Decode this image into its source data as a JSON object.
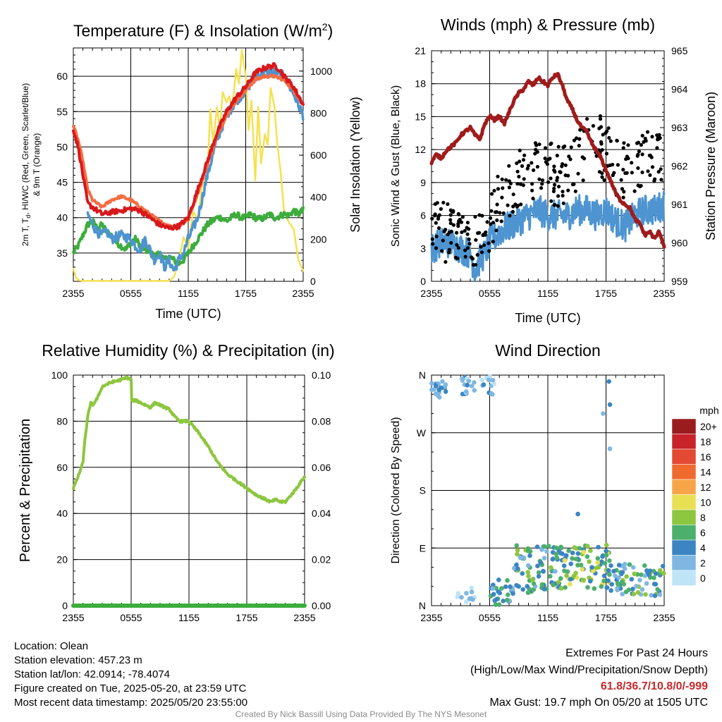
{
  "panels": {
    "temperature": {
      "title": "Temperature (F) & Insolation (W/m",
      "title_sup": "2",
      "title_end": ")",
      "ylabel_left": [
        "2m T, T",
        "d",
        ", HI/WC (Red, Green, Scarlet/Blue)",
        "& 9m T (Orange)"
      ],
      "ylabel_right": "Solar Insolation (Yellow)",
      "xlabel": "Time (UTC)"
    },
    "winds": {
      "title": "Winds (mph) & Pressure (mb)",
      "ylabel_left": "Sonic Wind & Gust (Blue, Black)",
      "ylabel_right": "Station Pressure (Maroon)",
      "xlabel": "Time (UTC)"
    },
    "humidity": {
      "title": "Relative Humidity (%) & Precipitation (in)",
      "ylabel_left": "Percent & Precipitation"
    },
    "direction": {
      "title": "Wind Direction",
      "ylabel_left": "Direction (Colored By Speed)",
      "colorbar_title": "mph"
    }
  },
  "info": {
    "location": "Location: Olean",
    "elevation": "Station elevation: 457.23 m",
    "latlon": "Station lat/lon: 42.0914; -78.4074",
    "created": "Figure created on Tue, 2025-05-20, at 23:59 UTC",
    "recent": "Most recent data timestamp: 2025/05/20 23:55:00"
  },
  "extremes": {
    "title": "Extremes For Past 24 Hours",
    "subtitle": "(High/Low/Max Wind/Precipitation/Snow Depth)",
    "values": "61.8/36.7/10.8/0/-999",
    "max_gust": "Max Gust: 19.7 mph On 05/20 at 1505 UTC"
  },
  "footer": "Created By Nick Bassill Using Data Provided By The NYS Mesonet",
  "chart_data": [
    {
      "id": "temperature",
      "type": "line",
      "x_ticks": [
        "2355",
        "0555",
        "1155",
        "1755",
        "2355"
      ],
      "x_hours": [
        0,
        6,
        12,
        18,
        24
      ],
      "y_left_ticks": [
        35,
        40,
        45,
        50,
        55,
        60
      ],
      "y_left_lim": [
        31,
        64
      ],
      "y_right_ticks": [
        0,
        200,
        400,
        600,
        800,
        1000
      ],
      "y_right_lim": [
        0,
        1110
      ],
      "series": [
        {
          "color": "#d7191c",
          "width": 4,
          "axis": "left",
          "x": [
            0,
            0.5,
            1,
            1.5,
            2,
            2.5,
            3,
            4,
            5,
            6,
            7,
            8,
            9,
            10,
            11,
            12,
            13,
            14,
            15,
            16,
            17,
            18,
            19,
            20,
            21,
            21.5,
            22,
            23,
            24
          ],
          "y": [
            52.5,
            50,
            46,
            42,
            41.5,
            41,
            40.5,
            40.8,
            41,
            41.3,
            41,
            40,
            39,
            38.5,
            38.8,
            40,
            44,
            48,
            52,
            55,
            57,
            58.5,
            60.5,
            61.2,
            61.5,
            61,
            60,
            58.5,
            56
          ]
        },
        {
          "color": "#f46d43",
          "width": 4,
          "axis": "left",
          "x": [
            0,
            0.5,
            1,
            1.5,
            2,
            2.5,
            3,
            4,
            5,
            6,
            7,
            8,
            9,
            10,
            11,
            12,
            13,
            14,
            15,
            16,
            17,
            18,
            19,
            20,
            21,
            22,
            23,
            24
          ],
          "y": [
            53,
            51,
            48,
            44,
            42.5,
            42,
            41.5,
            42.5,
            43,
            42.5,
            41.5,
            40.5,
            39.5,
            38.8,
            38.8,
            39.8,
            43.5,
            47.5,
            51.5,
            54.5,
            56.5,
            58,
            59.5,
            60,
            60,
            59.5,
            58,
            56
          ]
        },
        {
          "color": "#4d94d0",
          "width": 3.5,
          "axis": "left",
          "x": [
            1.5,
            2,
            2.5,
            3,
            3.5,
            4,
            5,
            6,
            6.5,
            7,
            7.5,
            8,
            8.5,
            9,
            9.5,
            10,
            10.5,
            11,
            11.5,
            12,
            13,
            14,
            15,
            16,
            17,
            18,
            19,
            20,
            21,
            22,
            23,
            24
          ],
          "y": [
            40.5,
            39,
            38,
            37.5,
            38,
            37,
            37.5,
            37,
            36,
            35.5,
            37,
            35.5,
            34,
            35,
            33,
            34,
            32.5,
            34,
            35,
            37,
            40,
            46,
            51,
            54.5,
            56.5,
            58,
            60,
            60.5,
            60.5,
            60,
            57.5,
            54.5
          ]
        },
        {
          "color": "#3cad3c",
          "width": 4,
          "axis": "left",
          "x": [
            0,
            0.5,
            1,
            1.5,
            2,
            2.5,
            3,
            3.5,
            4,
            4.5,
            5,
            5.5,
            6,
            6.5,
            7,
            7.5,
            8,
            8.5,
            9,
            9.5,
            10,
            10.5,
            11,
            11.5,
            12,
            12.5,
            13,
            13.5,
            14,
            14.5,
            15,
            15.5,
            16,
            16.5,
            17,
            17.5,
            18,
            18.5,
            19,
            19.5,
            20,
            20.5,
            21,
            21.5,
            22,
            22.5,
            23,
            23.5,
            24
          ],
          "y": [
            35,
            36,
            37.5,
            39,
            39.5,
            38.5,
            39,
            38,
            37.5,
            36.5,
            36,
            35.5,
            36.5,
            37,
            36,
            35.5,
            35,
            34.5,
            35,
            34,
            34.5,
            34,
            33.5,
            34,
            35,
            36,
            37,
            38,
            39,
            39.5,
            40,
            40,
            39.5,
            40,
            40.5,
            40,
            40,
            40.5,
            40,
            39.8,
            40,
            40.5,
            40,
            40.2,
            40.5,
            40.3,
            41,
            40.5,
            41
          ]
        },
        {
          "color": "#f5e151",
          "width": 2.5,
          "axis": "right",
          "x": [
            0,
            0.3,
            0.6,
            1,
            2,
            4,
            6,
            8,
            10,
            10.5,
            11,
            11.5,
            12,
            12.5,
            13,
            13.5,
            14,
            14.3,
            14.6,
            15,
            15.3,
            15.6,
            16,
            16.3,
            16.6,
            17,
            17.3,
            17.6,
            18,
            18.3,
            18.6,
            19,
            19.3,
            19.6,
            20,
            20.3,
            20.6,
            21,
            21.3,
            21.6,
            22,
            22.5,
            23,
            23.5,
            24
          ],
          "y": [
            60,
            15,
            5,
            2,
            2,
            2,
            2,
            2,
            2,
            20,
            90,
            210,
            160,
            330,
            300,
            470,
            510,
            820,
            660,
            830,
            720,
            900,
            850,
            880,
            820,
            1010,
            940,
            1100,
            980,
            720,
            860,
            480,
            830,
            560,
            700,
            650,
            920,
            830,
            650,
            540,
            340,
            280,
            250,
            100,
            50
          ]
        }
      ]
    },
    {
      "id": "winds",
      "type": "line",
      "x_ticks": [
        "2355",
        "0555",
        "1155",
        "1755",
        "2355"
      ],
      "x_hours": [
        0,
        6,
        12,
        18,
        24
      ],
      "y_left_ticks": [
        0,
        3,
        6,
        9,
        12,
        15,
        18,
        21
      ],
      "y_left_lim": [
        0,
        21
      ],
      "y_right_ticks": [
        959,
        960,
        961,
        962,
        963,
        964,
        965
      ],
      "y_right_lim": [
        959,
        965
      ],
      "series": [
        {
          "name": "pressure",
          "color": "#a01b1b",
          "width": 5,
          "axis": "right",
          "x": [
            0,
            0.5,
            1,
            1.5,
            2,
            2.5,
            3,
            3.5,
            4,
            4.5,
            5,
            5.5,
            6,
            6.5,
            7,
            7.5,
            8,
            8.5,
            9,
            9.5,
            10,
            10.5,
            11,
            11.5,
            12,
            12.5,
            13,
            13.5,
            14,
            14.5,
            15,
            15.5,
            16,
            16.5,
            17,
            17.5,
            18,
            18.5,
            19,
            19.5,
            20,
            20.5,
            21,
            21.5,
            22,
            22.5,
            23,
            23.5,
            24
          ],
          "y": [
            962.1,
            962.3,
            962.2,
            962.4,
            962.5,
            962.6,
            962.8,
            962.9,
            963.0,
            962.8,
            962.7,
            963.1,
            963.3,
            963.2,
            963.3,
            963.1,
            963.4,
            963.7,
            963.9,
            964.0,
            964.2,
            964.1,
            964.3,
            964.2,
            964.1,
            964.3,
            964.4,
            964.1,
            963.7,
            963.5,
            963.2,
            963.0,
            962.9,
            962.6,
            962.4,
            962.2,
            961.9,
            961.6,
            961.3,
            961.1,
            961.0,
            960.9,
            960.6,
            960.5,
            960.2,
            960.3,
            960.1,
            960.3,
            959.9
          ]
        },
        {
          "name": "wind",
          "color": "#4d94d0",
          "width": 3,
          "axis": "left",
          "noise": 1.4,
          "x": [
            0,
            1,
            2,
            3,
            4,
            4.5,
            5,
            5.5,
            6,
            7,
            8,
            9,
            10,
            11,
            12,
            13,
            14,
            15,
            16,
            17,
            18,
            19,
            20,
            21,
            22,
            23,
            24
          ],
          "y": [
            3,
            3.5,
            3.5,
            3,
            2.5,
            1,
            2,
            2.5,
            3.5,
            4.5,
            5,
            5.5,
            6,
            6.5,
            6,
            6,
            6,
            6.5,
            6.5,
            6,
            6.5,
            5.5,
            5,
            6,
            6.5,
            6.5,
            7
          ]
        }
      ],
      "gust_points": {
        "color": "#000000",
        "count": 290,
        "x": [
          0,
          1,
          2,
          3,
          4,
          5,
          6,
          7,
          8,
          9,
          10,
          11,
          12,
          13,
          14,
          15,
          16,
          17,
          18,
          19,
          20,
          21,
          22,
          23,
          24
        ],
        "y": [
          6,
          4.5,
          4.5,
          4,
          3.5,
          3.5,
          5,
          7.5,
          8.5,
          9.5,
          9.5,
          10,
          10,
          9.5,
          10,
          11,
          12,
          13,
          11.5,
          10.5,
          10,
          10.5,
          11,
          11.5,
          11.5
        ]
      }
    },
    {
      "id": "humidity",
      "type": "line",
      "x_ticks": [
        "2355",
        "0555",
        "1155",
        "1755",
        "2355"
      ],
      "x_hours": [
        0,
        6,
        12,
        18,
        24
      ],
      "y_left_ticks": [
        0,
        20,
        40,
        60,
        80,
        100
      ],
      "y_left_lim": [
        0,
        100
      ],
      "y_right_ticks": [
        "0.00",
        "0.02",
        "0.04",
        "0.06",
        "0.08",
        "0.10"
      ],
      "series": [
        {
          "name": "rh",
          "color": "#8dc63f",
          "width": 4,
          "axis": "left",
          "x": [
            0,
            0.5,
            1,
            1.2,
            1.5,
            1.8,
            2,
            2.5,
            3,
            3.5,
            4,
            5,
            5.5,
            6,
            6.05,
            6.5,
            7,
            7.5,
            8,
            8.5,
            9,
            10,
            10.5,
            11,
            12,
            13,
            14,
            15,
            16,
            17,
            18,
            19,
            20,
            20.5,
            21,
            21.5,
            22,
            23,
            24
          ],
          "y": [
            51,
            56,
            62,
            72,
            82,
            88,
            87,
            90,
            95,
            96,
            97,
            98,
            99,
            98,
            89,
            89,
            88,
            87,
            86,
            88,
            87,
            85,
            82,
            80,
            80,
            75,
            69,
            62,
            57,
            54,
            51,
            48,
            46,
            45,
            46,
            45,
            45,
            50,
            56
          ]
        },
        {
          "name": "precip",
          "color": "#3cad3c",
          "width": 6,
          "axis": "left",
          "x": [
            0,
            24
          ],
          "y": [
            0,
            0
          ]
        }
      ]
    },
    {
      "id": "direction",
      "type": "scatter",
      "x_ticks": [
        "2355",
        "0555",
        "1155",
        "1755",
        "2355"
      ],
      "x_hours": [
        0,
        6,
        12,
        18,
        24
      ],
      "y_ticks": [
        "N",
        "E",
        "S",
        "W",
        "N"
      ],
      "y_lim": [
        0,
        360
      ],
      "colorbar": {
        "labels": [
          "20+",
          "18",
          "16",
          "14",
          "12",
          "10",
          "8",
          "6",
          "4",
          "2",
          "0"
        ],
        "colors": [
          "#9b1c1f",
          "#c8232a",
          "#e34a33",
          "#f06a2f",
          "#f8a54a",
          "#e8e052",
          "#8dc63f",
          "#4caf6b",
          "#3c85c2",
          "#7fb7e2",
          "#bfe3f7"
        ]
      },
      "clusters": [
        {
          "x": [
            0,
            1.5
          ],
          "y": [
            325,
            352
          ],
          "speed": [
            2,
            5
          ],
          "n": 22
        },
        {
          "x": [
            3,
            6.5
          ],
          "y": [
            330,
            358
          ],
          "speed": [
            1,
            5
          ],
          "n": 30
        },
        {
          "x": [
            2.5,
            4.5
          ],
          "y": [
            5,
            30
          ],
          "speed": [
            1,
            3
          ],
          "n": 12
        },
        {
          "x": [
            6,
            8.5
          ],
          "y": [
            0,
            45
          ],
          "speed": [
            3,
            8
          ],
          "n": 30
        },
        {
          "x": [
            8.5,
            13.5
          ],
          "y": [
            20,
            95
          ],
          "speed": [
            3,
            9
          ],
          "n": 90
        },
        {
          "x": [
            13.5,
            18.5
          ],
          "y": [
            25,
            95
          ],
          "speed": [
            4,
            11
          ],
          "n": 80
        },
        {
          "x": [
            18.5,
            24
          ],
          "y": [
            15,
            65
          ],
          "speed": [
            3,
            9
          ],
          "n": 70
        }
      ],
      "singles": [
        {
          "x": 15.1,
          "y": 143,
          "speed": 4
        },
        {
          "x": 18.3,
          "y": 350,
          "speed": 4
        },
        {
          "x": 18.4,
          "y": 314,
          "speed": 4
        },
        {
          "x": 18.4,
          "y": 245,
          "speed": 2
        },
        {
          "x": 17.7,
          "y": 300,
          "speed": 2
        }
      ]
    }
  ]
}
